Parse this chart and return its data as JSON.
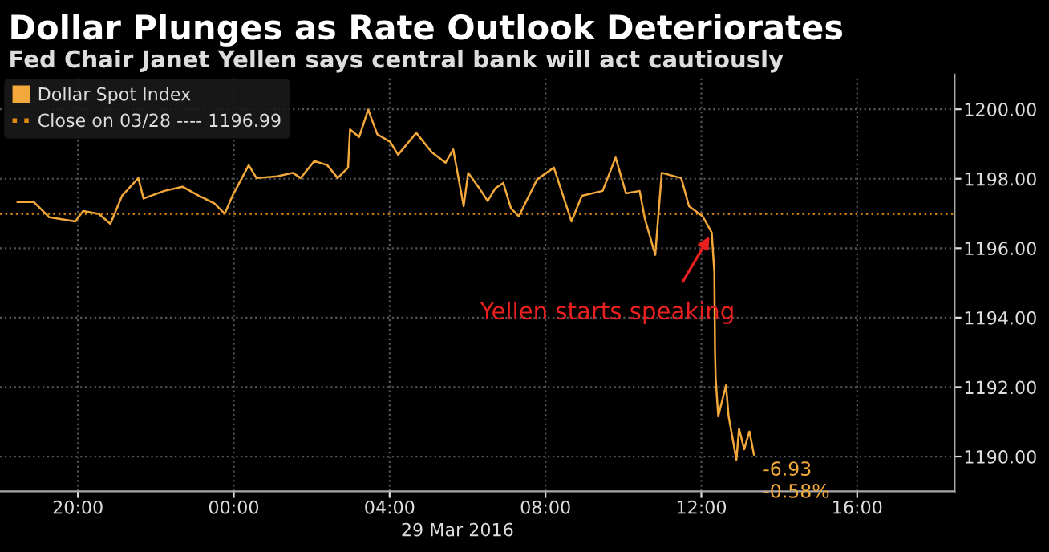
{
  "chart_data": {
    "type": "line",
    "title": "Dollar Plunges as Rate Outlook Deteriorates",
    "subtitle": "Fed Chair Janet Yellen says central bank will act cautiously",
    "x": [
      "2016-03-28T18:27",
      "2016-03-28T18:52",
      "2016-03-28T19:16",
      "2016-03-28T19:56",
      "2016-03-28T20:08",
      "2016-03-28T20:32",
      "2016-03-28T20:50",
      "2016-03-28T21:08",
      "2016-03-28T21:33",
      "2016-03-28T21:41",
      "2016-03-28T22:13",
      "2016-03-28T22:41",
      "2016-03-28T23:06",
      "2016-03-28T23:30",
      "2016-03-28T23:46",
      "2016-03-28T23:58",
      "2016-03-29T00:23",
      "2016-03-29T00:35",
      "2016-03-29T01:07",
      "2016-03-29T01:31",
      "2016-03-29T01:43",
      "2016-03-29T02:04",
      "2016-03-29T02:24",
      "2016-03-29T02:40",
      "2016-03-29T02:56",
      "2016-03-29T02:59",
      "2016-03-29T03:13",
      "2016-03-29T03:27",
      "2016-03-29T03:41",
      "2016-03-29T04:01",
      "2016-03-29T04:13",
      "2016-03-29T04:41",
      "2016-03-29T05:05",
      "2016-03-29T05:26",
      "2016-03-29T05:38",
      "2016-03-29T05:54",
      "2016-03-29T06:01",
      "2016-03-29T06:18",
      "2016-03-29T06:31",
      "2016-03-29T06:43",
      "2016-03-29T06:55",
      "2016-03-29T07:07",
      "2016-03-29T07:19",
      "2016-03-29T07:47",
      "2016-03-29T08:13",
      "2016-03-29T08:40",
      "2016-03-29T08:56",
      "2016-03-29T09:28",
      "2016-03-29T09:48",
      "2016-03-29T10:04",
      "2016-03-29T10:25",
      "2016-03-29T10:33",
      "2016-03-29T10:49",
      "2016-03-29T10:59",
      "2016-03-29T11:29",
      "2016-03-29T11:41",
      "2016-03-29T12:02",
      "2016-03-29T12:16",
      "2016-03-29T12:20",
      "2016-03-29T12:21",
      "2016-03-29T12:22",
      "2016-03-29T12:26",
      "2016-03-29T12:38",
      "2016-03-29T12:42",
      "2016-03-29T12:54",
      "2016-03-29T12:58",
      "2016-03-29T13:06",
      "2016-03-29T13:14",
      "2016-03-29T13:21"
    ],
    "series": [
      {
        "name": "Dollar Spot Index",
        "color": "#f2a83a",
        "values": [
          1197.33,
          1197.33,
          1196.89,
          1196.77,
          1197.07,
          1196.99,
          1196.7,
          1197.51,
          1198.02,
          1197.43,
          1197.65,
          1197.77,
          1197.51,
          1197.29,
          1196.99,
          1197.51,
          1198.39,
          1198.02,
          1198.07,
          1198.17,
          1198.02,
          1198.51,
          1198.39,
          1198.02,
          1198.32,
          1199.42,
          1199.2,
          1199.99,
          1199.28,
          1199.06,
          1198.69,
          1199.32,
          1198.76,
          1198.46,
          1198.84,
          1197.21,
          1198.17,
          1197.73,
          1197.36,
          1197.73,
          1197.88,
          1197.14,
          1196.92,
          1197.98,
          1198.32,
          1196.77,
          1197.51,
          1197.65,
          1198.61,
          1197.58,
          1197.65,
          1196.85,
          1195.81,
          1198.17,
          1198.02,
          1197.21,
          1196.92,
          1196.45,
          1195.31,
          1193.1,
          1192.27,
          1191.16,
          1192.05,
          1191.16,
          1189.91,
          1190.8,
          1190.21,
          1190.72,
          1190.06
        ]
      }
    ],
    "xlim": [
      "2016-03-28T18:00",
      "2016-03-29T18:30"
    ],
    "xticks": [
      {
        "value": "2016-03-28T20:00",
        "label": "20:00"
      },
      {
        "value": "2016-03-29T00:00",
        "label": "00:00"
      },
      {
        "value": "2016-03-29T04:00",
        "label": "04:00"
      },
      {
        "value": "2016-03-29T08:00",
        "label": "08:00"
      },
      {
        "value": "2016-03-29T12:00",
        "label": "12:00"
      },
      {
        "value": "2016-03-29T16:00",
        "label": "16:00"
      }
    ],
    "ylim": [
      1189,
      1201
    ],
    "yticks": [
      {
        "value": 1190,
        "label": "1190.00"
      },
      {
        "value": 1192,
        "label": "1192.00"
      },
      {
        "value": 1194,
        "label": "1194.00"
      },
      {
        "value": 1196,
        "label": "1196.00"
      },
      {
        "value": 1198,
        "label": "1198.00"
      },
      {
        "value": 1200,
        "label": "1200.00"
      }
    ],
    "ref_lines": [
      {
        "axis": "y",
        "value": 1196.99,
        "label": "Close on 03/28 ---- 1196.99",
        "color": "#e08a10",
        "line_style": "dotted"
      }
    ],
    "annotations": [
      "29 Mar 2016",
      {
        "text": "Yellen starts speaking",
        "x": "2016-03-29T12:16",
        "y": 1196.45
      },
      {
        "text": "-6.93",
        "x": "2016-03-29T13:21",
        "y": 1190.06
      },
      {
        "text": "-0.58%",
        "x": "2016-03-29T13:21",
        "y": 1190.06
      }
    ],
    "grid": true,
    "legend": "top left",
    "line_style": "solid",
    "marker": "none"
  }
}
